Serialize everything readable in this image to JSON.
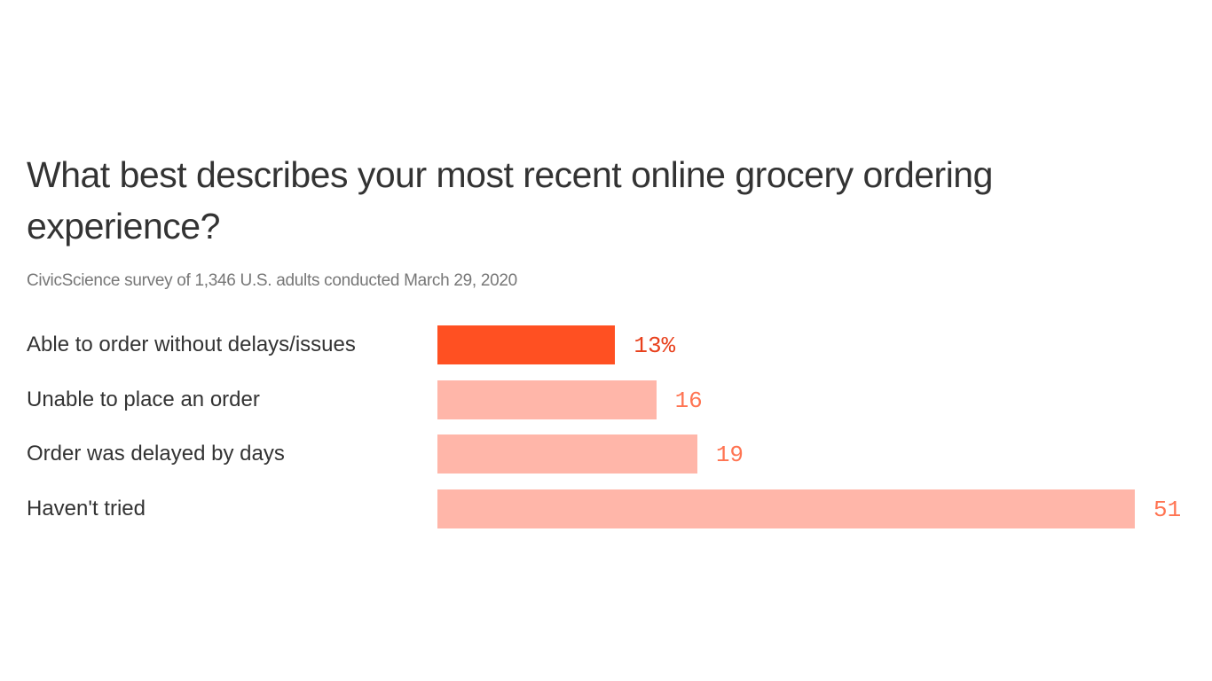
{
  "chart_data": {
    "type": "bar",
    "orientation": "horizontal",
    "title": "What best describes your most recent online grocery ordering experience?",
    "subtitle": "CivicScience survey of 1,346 U.S. adults conducted March 29, 2020",
    "categories": [
      "Able to order without delays/issues",
      "Unable to place an order",
      "Order was delayed by days",
      "Haven't tried"
    ],
    "values": [
      13,
      16,
      19,
      51
    ],
    "value_labels": [
      "13%",
      "16",
      "19",
      "51"
    ],
    "unit": "%",
    "xlim": [
      0,
      51
    ],
    "grid": false,
    "highlight_index": 0,
    "colors": {
      "highlight_bar": "#ff5022",
      "bar": "#ffb6a9",
      "highlight_label": "#e8401c",
      "label": "#ff7452"
    }
  }
}
